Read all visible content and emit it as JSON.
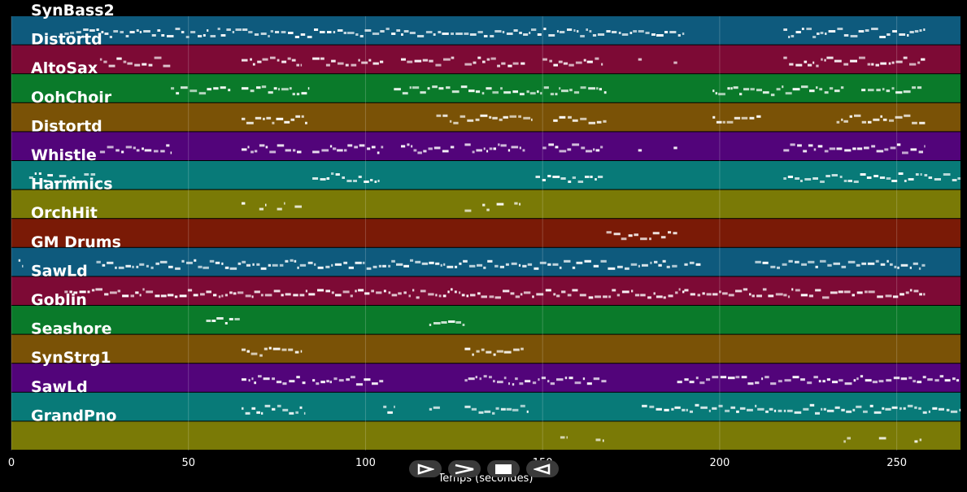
{
  "tracks": [
    {
      "name": "SynBass2",
      "color": "#0e5a7d"
    },
    {
      "name": "Distortd",
      "color": "#7d0a35"
    },
    {
      "name": "AltoSax",
      "color": "#0a7a2a"
    },
    {
      "name": "OohChoir",
      "color": "#7a5206"
    },
    {
      "name": "Distortd",
      "color": "#52047a"
    },
    {
      "name": "Whistle",
      "color": "#087a78"
    },
    {
      "name": "Harmnics",
      "color": "#7a7a06"
    },
    {
      "name": "OrchHit",
      "color": "#7a1a06"
    },
    {
      "name": "GM Drums",
      "color": "#0e5a7d"
    },
    {
      "name": "SawLd",
      "color": "#7d0a35"
    },
    {
      "name": "Goblin",
      "color": "#0a7a2a"
    },
    {
      "name": "Seashore",
      "color": "#7a5206"
    },
    {
      "name": "SynStrg1",
      "color": "#52047a"
    },
    {
      "name": "SawLd",
      "color": "#087a78"
    },
    {
      "name": "GrandPno",
      "color": "#7a7a06"
    }
  ],
  "axis": {
    "x_min": 0,
    "x_max": 268,
    "ticks": [
      0,
      50,
      100,
      150,
      200,
      250
    ],
    "tick_labels": [
      "0",
      "50",
      "100",
      "150",
      "200",
      "250"
    ],
    "title": "Temps (secondes)"
  },
  "transport": {
    "buttons": [
      {
        "name": "play-button",
        "icon": "play-icon"
      },
      {
        "name": "forward-button",
        "icon": "forward-icon"
      },
      {
        "name": "stop-button",
        "icon": "stop-icon"
      },
      {
        "name": "rewind-button",
        "icon": "rewind-icon"
      }
    ]
  },
  "note_color": "#ffffff",
  "note_segments": [
    [
      [
        15,
        190
      ],
      [
        218,
        258
      ]
    ],
    [
      [
        25,
        45
      ],
      [
        65,
        82
      ],
      [
        85,
        105
      ],
      [
        110,
        125
      ],
      [
        128,
        145
      ],
      [
        150,
        167
      ],
      [
        177,
        178
      ],
      [
        187,
        188
      ],
      [
        218,
        258
      ]
    ],
    [
      [
        45,
        62
      ],
      [
        65,
        84
      ],
      [
        108,
        168
      ],
      [
        198,
        235
      ],
      [
        240,
        257
      ]
    ],
    [
      [
        65,
        84
      ],
      [
        120,
        147
      ],
      [
        153,
        168
      ],
      [
        198,
        212
      ],
      [
        233,
        258
      ]
    ],
    [
      [
        25,
        45
      ],
      [
        65,
        82
      ],
      [
        85,
        105
      ],
      [
        110,
        125
      ],
      [
        128,
        145
      ],
      [
        150,
        167
      ],
      [
        177,
        178
      ],
      [
        187,
        188
      ],
      [
        218,
        258
      ]
    ],
    [
      [
        5,
        25
      ],
      [
        85,
        104
      ],
      [
        148,
        167
      ],
      [
        218,
        268
      ]
    ],
    [
      [
        65,
        66
      ],
      [
        70,
        72
      ],
      [
        75,
        77
      ],
      [
        80,
        82
      ],
      [
        128,
        130
      ],
      [
        133,
        135
      ],
      [
        137,
        139
      ],
      [
        142,
        144
      ]
    ],
    [
      [
        168,
        188
      ]
    ],
    [
      [
        2,
        3
      ],
      [
        24,
        188
      ],
      [
        190,
        195
      ],
      [
        210,
        258
      ]
    ],
    [
      [
        15,
        190
      ],
      [
        190,
        218
      ],
      [
        218,
        258
      ]
    ],
    [
      [
        55,
        65
      ],
      [
        118,
        128
      ]
    ],
    [
      [
        65,
        82
      ],
      [
        128,
        145
      ]
    ],
    [
      [
        65,
        83
      ],
      [
        85,
        105
      ],
      [
        128,
        168
      ],
      [
        188,
        268
      ]
    ],
    [
      [
        65,
        83
      ],
      [
        105,
        108
      ],
      [
        118,
        121
      ],
      [
        128,
        146
      ],
      [
        178,
        268
      ]
    ],
    [
      [
        155,
        157
      ],
      [
        165,
        167
      ],
      [
        235,
        237
      ],
      [
        245,
        247
      ],
      [
        255,
        257
      ]
    ]
  ]
}
